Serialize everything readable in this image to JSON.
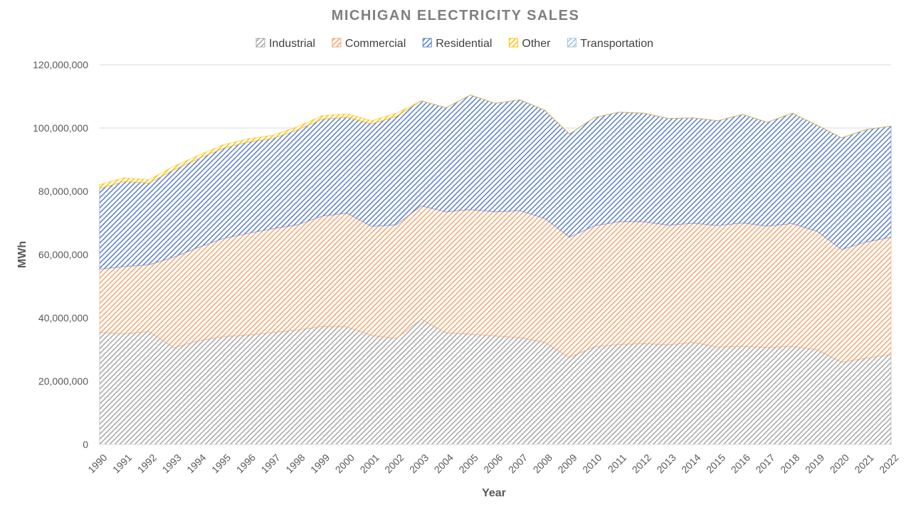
{
  "chart_data": {
    "type": "area",
    "stacked": true,
    "title": "MICHIGAN ELECTRICITY SALES",
    "xlabel": "Year",
    "ylabel": "MWh",
    "ylim": [
      0,
      120000000
    ],
    "yticks": [
      0,
      20000000,
      40000000,
      60000000,
      80000000,
      100000000,
      120000000
    ],
    "ytick_labels": [
      "0",
      "20,000,000",
      "40,000,000",
      "60,000,000",
      "80,000,000",
      "100,000,000",
      "120,000,000"
    ],
    "grid": "horizontal",
    "legend_position": "top",
    "categories": [
      "1990",
      "1991",
      "1992",
      "1993",
      "1994",
      "1995",
      "1996",
      "1997",
      "1998",
      "1999",
      "2000",
      "2001",
      "2002",
      "2003",
      "2004",
      "2005",
      "2006",
      "2007",
      "2008",
      "2009",
      "2010",
      "2011",
      "2012",
      "2013",
      "2014",
      "2015",
      "2016",
      "2017",
      "2018",
      "2019",
      "2020",
      "2021",
      "2022"
    ],
    "series": [
      {
        "name": "Industrial",
        "color": "#a6a6a6",
        "values": [
          35500000,
          35000000,
          35700000,
          30600000,
          32800000,
          34100000,
          34600000,
          35400000,
          36200000,
          37300000,
          37200000,
          34500000,
          33500000,
          39600000,
          35300000,
          34900000,
          34300000,
          33800000,
          32300000,
          27500000,
          30900000,
          31600000,
          31900000,
          31500000,
          32300000,
          30800000,
          31000000,
          30700000,
          31000000,
          30000000,
          26000000,
          27300000,
          28400000
        ]
      },
      {
        "name": "Commercial",
        "color": "#f4a46c",
        "values": [
          19900000,
          21200000,
          21100000,
          28600000,
          29500000,
          31000000,
          32100000,
          32800000,
          33200000,
          34900000,
          35900000,
          34400000,
          35900000,
          35800000,
          38200000,
          39300000,
          39200000,
          40100000,
          39100000,
          38000000,
          38200000,
          38800000,
          38500000,
          37800000,
          37600000,
          38400000,
          39000000,
          38300000,
          38800000,
          37400000,
          35600000,
          36700000,
          37100000
        ]
      },
      {
        "name": "Residential",
        "color": "#5a7fd0",
        "values": [
          25500000,
          26900000,
          25800000,
          27600000,
          28000000,
          28500000,
          28900000,
          28500000,
          30000000,
          30600000,
          30300000,
          32400000,
          34300000,
          33200000,
          32900000,
          36200000,
          34300000,
          35000000,
          34200000,
          32600000,
          34200000,
          34600000,
          34300000,
          33700000,
          33300000,
          33100000,
          34300000,
          32800000,
          34900000,
          33500000,
          35300000,
          35500000,
          35100000
        ]
      },
      {
        "name": "Other",
        "color": "#ffc000",
        "values": [
          1200000,
          1200000,
          1100000,
          1100000,
          1100000,
          1100000,
          1000000,
          1000000,
          1000000,
          1100000,
          1100000,
          1000000,
          1000000,
          0,
          0,
          0,
          0,
          0,
          0,
          0,
          0,
          0,
          0,
          0,
          0,
          0,
          0,
          0,
          0,
          0,
          0,
          0,
          0
        ]
      },
      {
        "name": "Transportation",
        "color": "#9dc3e6",
        "values": [
          0,
          0,
          0,
          0,
          0,
          0,
          0,
          0,
          0,
          0,
          0,
          0,
          0,
          0,
          0,
          0,
          0,
          0,
          0,
          0,
          0,
          0,
          0,
          0,
          0,
          0,
          0,
          0,
          0,
          0,
          0,
          0,
          0
        ]
      }
    ]
  }
}
